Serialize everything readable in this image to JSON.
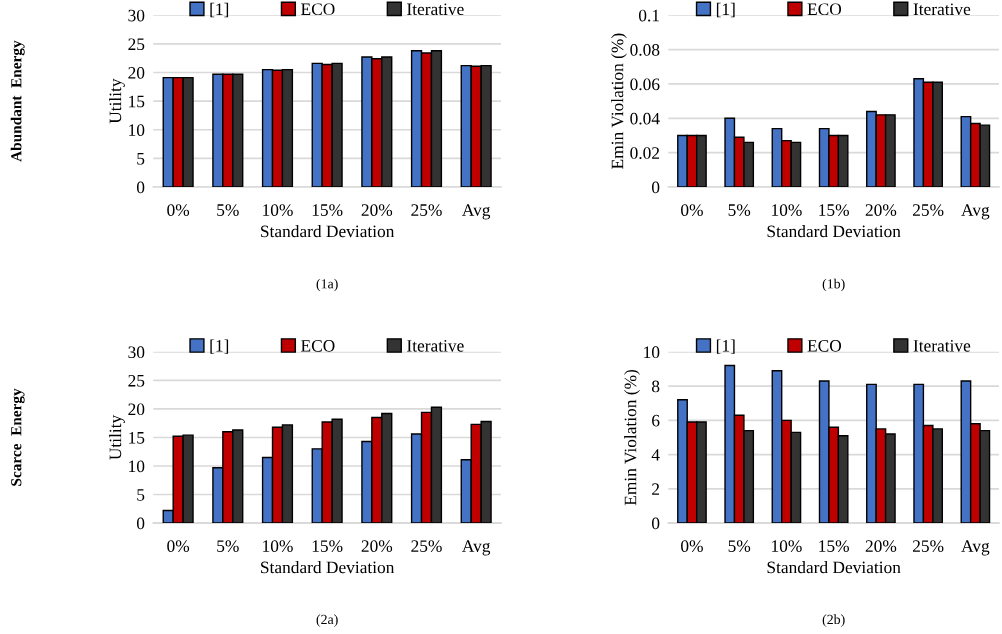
{
  "chart_data": [
    {
      "type": "bar",
      "categories": [
        "0%",
        "5%",
        "10%",
        "15%",
        "20%",
        "25%",
        "Avg"
      ],
      "xlabel": "Standard Deviation",
      "ylabel": "Utility",
      "ylim": [
        0,
        30
      ],
      "yticks": [
        0,
        5,
        10,
        15,
        20,
        25,
        30
      ],
      "grid": "y",
      "legend": "top",
      "annotations": [
        "(1a)",
        "Abundant  Energy"
      ],
      "series": [
        {
          "name": "[1]",
          "color": "#4472c4",
          "values": [
            19.1,
            19.7,
            20.5,
            21.6,
            22.7,
            23.8,
            21.2
          ]
        },
        {
          "name": "ECO",
          "color": "#c00000",
          "values": [
            19.1,
            19.7,
            20.4,
            21.4,
            22.4,
            23.4,
            21.1
          ]
        },
        {
          "name": "Iterative",
          "color": "#333333",
          "values": [
            19.1,
            19.7,
            20.5,
            21.6,
            22.7,
            23.8,
            21.2
          ]
        }
      ]
    },
    {
      "type": "bar",
      "categories": [
        "0%",
        "5%",
        "10%",
        "15%",
        "20%",
        "25%",
        "Avg"
      ],
      "xlabel": "Standard Deviation",
      "ylabel": "Emin Violation (%)",
      "ylim": [
        0,
        0.1
      ],
      "yticks": [
        0,
        0.02,
        0.04,
        0.06,
        0.08,
        0.1
      ],
      "grid": "y",
      "legend": "top",
      "annotations": [
        "(1b)"
      ],
      "series": [
        {
          "name": "[1]",
          "color": "#4472c4",
          "values": [
            0.03,
            0.04,
            0.034,
            0.034,
            0.044,
            0.063,
            0.041
          ]
        },
        {
          "name": "ECO",
          "color": "#c00000",
          "values": [
            0.03,
            0.029,
            0.027,
            0.03,
            0.042,
            0.061,
            0.037
          ]
        },
        {
          "name": "Iterative",
          "color": "#333333",
          "values": [
            0.03,
            0.026,
            0.026,
            0.03,
            0.042,
            0.061,
            0.036
          ]
        }
      ]
    },
    {
      "type": "bar",
      "categories": [
        "0%",
        "5%",
        "10%",
        "15%",
        "20%",
        "25%",
        "Avg"
      ],
      "xlabel": "Standard Deviation",
      "ylabel": "Utility",
      "ylim": [
        0,
        30
      ],
      "yticks": [
        0,
        5,
        10,
        15,
        20,
        25,
        30
      ],
      "grid": "y",
      "legend": "top",
      "annotations": [
        "(2a)",
        "Scarce  Energy"
      ],
      "series": [
        {
          "name": "[1]",
          "color": "#4472c4",
          "values": [
            2.2,
            9.7,
            11.5,
            13.0,
            14.3,
            15.6,
            11.1
          ]
        },
        {
          "name": "ECO",
          "color": "#c00000",
          "values": [
            15.2,
            16.0,
            16.8,
            17.7,
            18.5,
            19.4,
            17.3
          ]
        },
        {
          "name": "Iterative",
          "color": "#333333",
          "values": [
            15.4,
            16.3,
            17.2,
            18.2,
            19.2,
            20.3,
            17.8
          ]
        }
      ]
    },
    {
      "type": "bar",
      "categories": [
        "0%",
        "5%",
        "10%",
        "15%",
        "20%",
        "25%",
        "Avg"
      ],
      "xlabel": "Standard Deviation",
      "ylabel": "Emin Violation (%)",
      "ylim": [
        0,
        10
      ],
      "yticks": [
        0,
        2,
        4,
        6,
        8,
        10
      ],
      "grid": "y",
      "legend": "top",
      "annotations": [
        "(2b)"
      ],
      "series": [
        {
          "name": "[1]",
          "color": "#4472c4",
          "values": [
            7.2,
            9.2,
            8.9,
            8.3,
            8.1,
            8.1,
            8.3
          ]
        },
        {
          "name": "ECO",
          "color": "#c00000",
          "values": [
            5.9,
            6.3,
            6.0,
            5.6,
            5.5,
            5.7,
            5.8
          ]
        },
        {
          "name": "Iterative",
          "color": "#333333",
          "values": [
            5.9,
            5.4,
            5.3,
            5.1,
            5.2,
            5.5,
            5.4
          ]
        }
      ]
    }
  ]
}
